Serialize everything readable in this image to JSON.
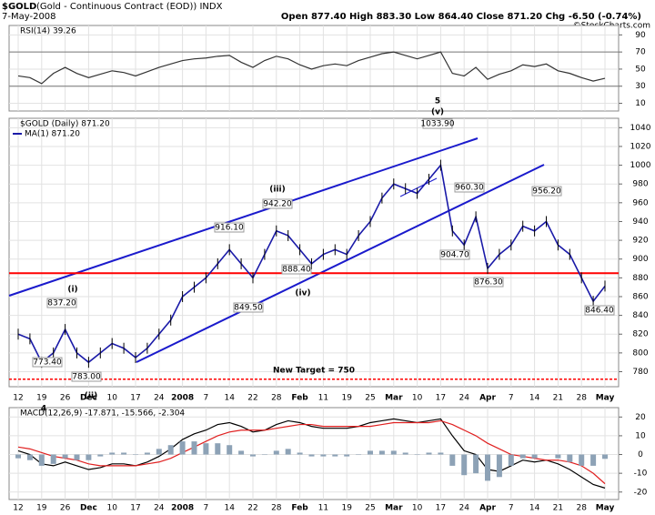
{
  "header": {
    "symbol": "$GOLD",
    "name": "(Gold - Continuous Contract (EOD)) INDX",
    "date": "7-May-2008",
    "stats": "Open 877.40 High 883.30 Low 864.40 Close 871.20 Chg -6.50 (-0.74%)",
    "credit": "©StockCharts.com"
  },
  "chart_data": [
    {
      "type": "line",
      "title": "RSI(14) 39.26",
      "ylim": [
        1,
        101
      ],
      "yticks": [
        10,
        30,
        50,
        70,
        90
      ],
      "bands": [
        30,
        70
      ],
      "grid": true,
      "series": [
        {
          "color": "#333333",
          "values": [
            42,
            40,
            33,
            45,
            52,
            45,
            40,
            44,
            48,
            46,
            42,
            47,
            52,
            56,
            60,
            62,
            63,
            65,
            66,
            58,
            52,
            60,
            65,
            62,
            55,
            50,
            54,
            56,
            54,
            60,
            64,
            68,
            70,
            66,
            62,
            66,
            70,
            45,
            42,
            52,
            38,
            44,
            48,
            55,
            53,
            56,
            48,
            45,
            40,
            36,
            39.26
          ]
        }
      ]
    },
    {
      "type": "line",
      "title": "$GOLD (Daily) 871.20",
      "ylim": [
        764,
        1050
      ],
      "yticks": [
        780,
        800,
        820,
        840,
        860,
        880,
        900,
        920,
        940,
        960,
        980,
        1000,
        1020,
        1040
      ],
      "grid": true,
      "categories": [
        "12",
        null,
        "19",
        null,
        "26",
        null,
        "Dec",
        null,
        "10",
        null,
        "17",
        null,
        "24",
        null,
        "2008",
        null,
        "7",
        null,
        "14",
        null,
        "22",
        null,
        "28",
        null,
        "Feb",
        null,
        "11",
        null,
        "19",
        null,
        "25",
        null,
        "Mar",
        null,
        "10",
        null,
        "17",
        null,
        "24",
        null,
        "Apr",
        null,
        "7",
        null,
        "14",
        null,
        "21",
        null,
        "28",
        null,
        "May"
      ],
      "series": [
        {
          "name": "MA(1) 871.20",
          "color": "#1a1aa8",
          "values": [
            820,
            815,
            790,
            800,
            825,
            800,
            790,
            800,
            810,
            805,
            795,
            805,
            820,
            835,
            860,
            870,
            880,
            895,
            910,
            895,
            880,
            905,
            930,
            925,
            910,
            895,
            905,
            910,
            905,
            925,
            940,
            965,
            980,
            975,
            970,
            985,
            1000,
            930,
            915,
            945,
            890,
            905,
            915,
            935,
            930,
            940,
            915,
            905,
            880,
            855,
            871.2
          ]
        }
      ],
      "hlines": [
        {
          "value": 885,
          "color": "#ff0000",
          "style": "solid"
        },
        {
          "value": 772,
          "color": "#ff0000",
          "style": "dotted"
        }
      ],
      "point_labels": [
        "773.40",
        "837.20",
        "783.00",
        "916.10",
        "942.20",
        "849.50",
        "888.40",
        "1033.90",
        "960.30",
        "904.70",
        "876.30",
        "956.20",
        "846.40"
      ],
      "wave_labels": [
        {
          "text": "(i)",
          "color": "#cc0000"
        },
        {
          "text": "(ii)",
          "color": "#cc0000"
        },
        {
          "text": "(iii)",
          "color": "#cc0000"
        },
        {
          "text": "(iv)",
          "color": "#cc0000"
        },
        {
          "text": "(v)",
          "color": "#cc0000"
        },
        {
          "text": "5",
          "color": "#1a1acc"
        },
        {
          "text": "4",
          "color": "#1a1acc"
        }
      ],
      "annotation": "New Target = 750"
    },
    {
      "type": "line",
      "title": "MACD(12,26,9) -17.871, -15.566, -2.304",
      "ylim": [
        -24,
        25
      ],
      "yticks": [
        20,
        10,
        0,
        -10,
        -20
      ],
      "grid": true,
      "series": [
        {
          "color": "#000000",
          "values": [
            2,
            0,
            -5,
            -6,
            -4,
            -6,
            -8,
            -7,
            -5,
            -5,
            -6,
            -4,
            -1,
            3,
            8,
            11,
            13,
            16,
            17,
            15,
            12,
            13,
            16,
            18,
            17,
            15,
            14,
            14,
            14,
            15,
            17,
            18,
            19,
            18,
            17,
            18,
            19,
            10,
            2,
            0,
            -8,
            -9,
            -6,
            -3,
            -4,
            -3,
            -5,
            -8,
            -12,
            -16,
            -17.871
          ]
        },
        {
          "color": "#e02020",
          "values": [
            4,
            3,
            1,
            -1,
            -2,
            -3,
            -5,
            -6,
            -6,
            -6,
            -6,
            -5,
            -4,
            -2,
            1,
            4,
            7,
            10,
            12,
            13,
            13,
            13,
            14,
            15,
            16,
            16,
            15,
            15,
            15,
            15,
            15,
            16,
            17,
            17,
            17,
            17,
            18,
            16,
            13,
            10,
            6,
            3,
            0,
            -1,
            -2,
            -3,
            -3,
            -4,
            -6,
            -10,
            -15.566
          ]
        },
        {
          "type": "bar",
          "color": "#8da2b6",
          "values": [
            -2,
            -3,
            -6,
            -5,
            -2,
            -3,
            -3,
            -1,
            1,
            1,
            0,
            1,
            3,
            5,
            7,
            7,
            6,
            6,
            5,
            2,
            -1,
            0,
            2,
            3,
            1,
            -1,
            -1,
            -1,
            -1,
            0,
            2,
            2,
            2,
            1,
            0,
            1,
            1,
            -6,
            -11,
            -10,
            -14,
            -12,
            -6,
            -2,
            -2,
            0,
            -2,
            -4,
            -6,
            -6,
            -2.304
          ]
        }
      ]
    }
  ]
}
